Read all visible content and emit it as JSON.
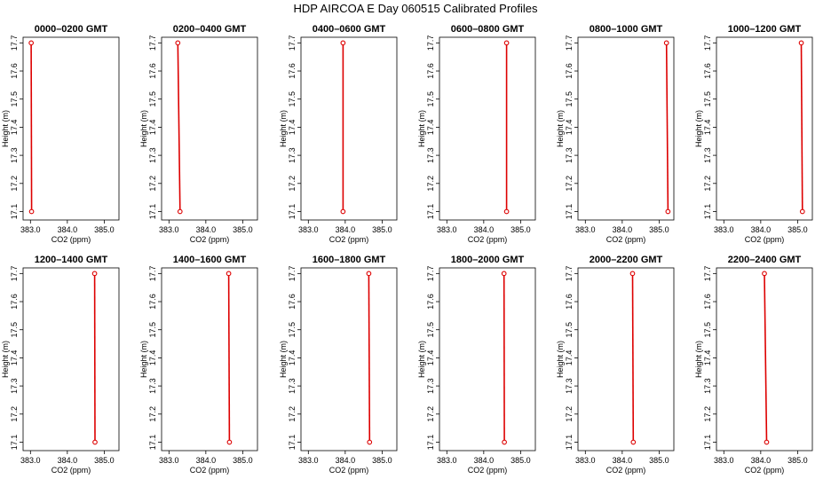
{
  "title": "HDP AIRCOA E  Day 060515  Calibrated Profiles",
  "chart_data": {
    "type": "line",
    "xlabel": "CO2 (ppm)",
    "ylabel": "Height (m)",
    "xlim": [
      382.8,
      385.4
    ],
    "ylim": [
      17.07,
      17.72
    ],
    "xticks": [
      "383.0",
      "384.0",
      "385.0"
    ],
    "xtick_values": [
      383.0,
      384.0,
      385.0
    ],
    "yticks": [
      "17.1",
      "17.2",
      "17.3",
      "17.4",
      "17.5",
      "17.6",
      "17.7"
    ],
    "ytick_values": [
      17.1,
      17.2,
      17.3,
      17.4,
      17.5,
      17.6,
      17.7
    ],
    "line_color": "#dd0000",
    "marker": "open-circle",
    "panels": [
      {
        "title": "0000–0200 GMT",
        "x": [
          383.03,
          383.02
        ],
        "y": [
          17.1,
          17.7
        ]
      },
      {
        "title": "0200–0400 GMT",
        "x": [
          383.3,
          383.24
        ],
        "y": [
          17.1,
          17.7
        ]
      },
      {
        "title": "0400–0600 GMT",
        "x": [
          383.94,
          383.94
        ],
        "y": [
          17.1,
          17.7
        ]
      },
      {
        "title": "0600–0800 GMT",
        "x": [
          384.62,
          384.62
        ],
        "y": [
          17.1,
          17.7
        ]
      },
      {
        "title": "0800–1000 GMT",
        "x": [
          385.24,
          385.2
        ],
        "y": [
          17.1,
          17.7
        ]
      },
      {
        "title": "1000–1200 GMT",
        "x": [
          385.13,
          385.1
        ],
        "y": [
          17.1,
          17.7
        ]
      },
      {
        "title": "1200–1400 GMT",
        "x": [
          384.75,
          384.74
        ],
        "y": [
          17.1,
          17.7
        ]
      },
      {
        "title": "1400–1600 GMT",
        "x": [
          384.64,
          384.62
        ],
        "y": [
          17.1,
          17.7
        ]
      },
      {
        "title": "1600–1800 GMT",
        "x": [
          384.66,
          384.64
        ],
        "y": [
          17.1,
          17.7
        ]
      },
      {
        "title": "1800–2000 GMT",
        "x": [
          384.56,
          384.55
        ],
        "y": [
          17.1,
          17.7
        ]
      },
      {
        "title": "2000–2200 GMT",
        "x": [
          384.3,
          384.28
        ],
        "y": [
          17.1,
          17.7
        ]
      },
      {
        "title": "2200–2400 GMT",
        "x": [
          384.16,
          384.1
        ],
        "y": [
          17.1,
          17.7
        ]
      }
    ]
  }
}
